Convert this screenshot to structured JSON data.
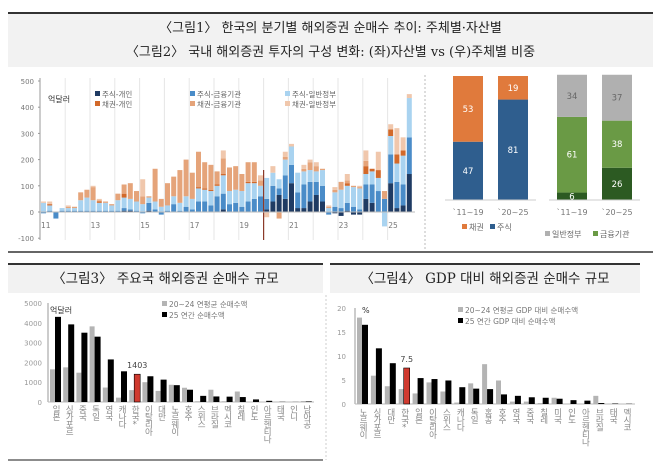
{
  "header": {
    "title1": "〈그림1〉 한국의 분기별 해외증권 순매수 추이: 주체별·자산별",
    "title2": "〈그림2〉 국내 해외증권 투자의 구성 변화: (좌)자산별 vs (우)주체별 비중"
  },
  "chart_data": [
    {
      "type": "bar",
      "stacked": true,
      "unit": "억달러",
      "ylim": [
        -100,
        500
      ],
      "yticks": [
        -100,
        0,
        100,
        200,
        300,
        400,
        500
      ],
      "x_tick_labels": [
        "11",
        "13",
        "15",
        "17",
        "19",
        "21",
        "23",
        "25"
      ],
      "series_names": [
        "주식-개인",
        "주식-금융기관",
        "주식-일반정부",
        "채권-개인",
        "채권-금융기관",
        "채권-일반정부"
      ],
      "colors": [
        "#1f3b63",
        "#4a8cc8",
        "#a9d3f0",
        "#d2692a",
        "#e5a47a",
        "#f0c7ac"
      ],
      "quarters_from": "2011Q1",
      "rows": [
        [
          0,
          -5,
          35,
          0,
          0,
          5
        ],
        [
          0,
          5,
          20,
          5,
          0,
          10
        ],
        [
          0,
          -25,
          0,
          0,
          0,
          0
        ],
        [
          0,
          5,
          10,
          0,
          0,
          0
        ],
        [
          0,
          5,
          10,
          0,
          5,
          5
        ],
        [
          0,
          5,
          10,
          0,
          5,
          0
        ],
        [
          0,
          5,
          40,
          0,
          30,
          0
        ],
        [
          0,
          5,
          50,
          0,
          30,
          0
        ],
        [
          0,
          5,
          40,
          0,
          50,
          5
        ],
        [
          0,
          5,
          30,
          5,
          5,
          5
        ],
        [
          0,
          5,
          30,
          0,
          5,
          0
        ],
        [
          0,
          5,
          20,
          0,
          5,
          0
        ],
        [
          0,
          5,
          40,
          0,
          25,
          0
        ],
        [
          5,
          10,
          40,
          15,
          35,
          0
        ],
        [
          5,
          5,
          40,
          0,
          60,
          0
        ],
        [
          0,
          5,
          35,
          0,
          40,
          0
        ],
        [
          0,
          -5,
          30,
          0,
          30,
          65
        ],
        [
          5,
          30,
          20,
          0,
          5,
          0
        ],
        [
          0,
          10,
          30,
          0,
          125,
          0
        ],
        [
          0,
          -10,
          20,
          0,
          30,
          0
        ],
        [
          0,
          5,
          20,
          0,
          85,
          0
        ],
        [
          0,
          30,
          30,
          0,
          75,
          0
        ],
        [
          0,
          5,
          30,
          0,
          125,
          0
        ],
        [
          0,
          20,
          40,
          0,
          140,
          0
        ],
        [
          0,
          10,
          40,
          0,
          100,
          0
        ],
        [
          0,
          40,
          50,
          5,
          135,
          0
        ],
        [
          0,
          40,
          45,
          5,
          100,
          0
        ],
        [
          0,
          25,
          55,
          5,
          95,
          0
        ],
        [
          0,
          60,
          40,
          5,
          50,
          0
        ],
        [
          10,
          60,
          70,
          5,
          60,
          30
        ],
        [
          0,
          30,
          50,
          0,
          90,
          0
        ],
        [
          0,
          35,
          50,
          0,
          90,
          0
        ],
        [
          0,
          20,
          60,
          0,
          65,
          0
        ],
        [
          0,
          40,
          70,
          5,
          75,
          0
        ],
        [
          0,
          50,
          60,
          5,
          75,
          0
        ],
        [
          0,
          60,
          40,
          0,
          20,
          20
        ],
        [
          10,
          40,
          80,
          0,
          0,
          -20
        ],
        [
          40,
          60,
          50,
          0,
          0,
          25
        ],
        [
          65,
          25,
          35,
          0,
          -25,
          0
        ],
        [
          50,
          90,
          60,
          0,
          10,
          20
        ],
        [
          110,
          70,
          70,
          0,
          0,
          10
        ],
        [
          15,
          60,
          75,
          0,
          0,
          0
        ],
        [
          15,
          90,
          50,
          0,
          10,
          15
        ],
        [
          40,
          75,
          45,
          0,
          30,
          10
        ],
        [
          65,
          50,
          40,
          0,
          20,
          15
        ],
        [
          40,
          60,
          60,
          0,
          5,
          0
        ],
        [
          0,
          -10,
          15,
          0,
          5,
          5
        ],
        [
          -5,
          20,
          55,
          0,
          10,
          10
        ],
        [
          -15,
          15,
          70,
          0,
          30,
          0
        ],
        [
          5,
          30,
          65,
          10,
          10,
          25
        ],
        [
          -10,
          20,
          75,
          0,
          5,
          0
        ],
        [
          -10,
          10,
          80,
          0,
          5,
          5
        ],
        [
          50,
          55,
          40,
          30,
          20,
          40
        ],
        [
          35,
          70,
          50,
          10,
          0,
          0
        ],
        [
          0,
          80,
          50,
          30,
          0,
          70
        ],
        [
          0,
          50,
          -55,
          0,
          30,
          0
        ],
        [
          110,
          110,
          70,
          25,
          0,
          20
        ],
        [
          15,
          100,
          70,
          35,
          0,
          100
        ],
        [
          25,
          80,
          110,
          20,
          0,
          50
        ],
        [
          145,
          140,
          150,
          0,
          0,
          15
        ]
      ]
    },
    {
      "type": "bar",
      "stacked": true,
      "percent": true,
      "categories": [
        "`11~19",
        "`20~25"
      ],
      "series": [
        {
          "name": "주식",
          "values": [
            47,
            81
          ],
          "color": "#2f5e8e"
        },
        {
          "name": "채권",
          "values": [
            53,
            19
          ],
          "color": "#e07a3c"
        }
      ]
    },
    {
      "type": "bar",
      "stacked": true,
      "percent": true,
      "categories": [
        "`11~19",
        "`20~25"
      ],
      "series": [
        {
          "name": "",
          "values": [
            6,
            26
          ],
          "color": "#2c5a22"
        },
        {
          "name": "금융기관",
          "values": [
            61,
            38
          ],
          "color": "#6a9a45"
        },
        {
          "name": "일반정부",
          "values": [
            34,
            37
          ],
          "color": "#b0b0b0"
        }
      ]
    },
    {
      "type": "bar",
      "title": "〈그림3〉 주요국 해외증권 순매수 규모",
      "unit": "억달러",
      "ylim": [
        0,
        5000
      ],
      "yticks": [
        0,
        1000,
        2000,
        3000,
        4000,
        5000
      ],
      "categories": [
        "일본",
        "싱가포르",
        "중국",
        "독일",
        "영국",
        "캐나다",
        "한국*",
        "이탈리아",
        "대만",
        "노르웨이",
        "호주",
        "스위스",
        "브라질",
        "멕시코",
        "칠레",
        "인도",
        "아르헨티나",
        "태국",
        "인니",
        "남아공"
      ],
      "series": [
        {
          "name": "20~24 연평균 순매수액",
          "values": [
            1650,
            1750,
            1480,
            3820,
            730,
            220,
            600,
            1000,
            560,
            870,
            720,
            40,
            620,
            40,
            530,
            0,
            0,
            20,
            10,
            50
          ],
          "color": "#b4b4b4"
        },
        {
          "name": "25 연간 순매수액",
          "values": [
            4300,
            3920,
            3500,
            3300,
            2150,
            1550,
            1403,
            1300,
            1130,
            850,
            620,
            310,
            280,
            270,
            250,
            130,
            60,
            10,
            5,
            30
          ],
          "color": "#000000"
        }
      ],
      "highlight_index": 6,
      "highlight_color": "#d03a2f",
      "annotation": "1403"
    },
    {
      "type": "bar",
      "title": "〈그림4〉 GDP 대비 해외증권 순매수 규모",
      "unit": "%",
      "ylim": [
        0,
        20
      ],
      "yticks": [
        0,
        5,
        10,
        15,
        20
      ],
      "categories": [
        "노르웨이",
        "싱가포르",
        "대만",
        "한국*",
        "일본",
        "이탈리아",
        "스위스",
        "캐나다",
        "독일",
        "홍콩",
        "호주",
        "영국",
        "중국",
        "칠레",
        "미국",
        "인도",
        "아르헨티나",
        "브라질",
        "태국",
        "멕시코"
      ],
      "series": [
        {
          "name": "20~24 연평균 GDP 대비 순매수액",
          "values": [
            18,
            5.9,
            3.7,
            3.1,
            2.2,
            4.5,
            2.6,
            0.3,
            4.3,
            8.3,
            4.9,
            0.5,
            0.5,
            0.2,
            1.3,
            0.1,
            0.1,
            1.7,
            0.1,
            0
          ],
          "color": "#b4b4b4"
        },
        {
          "name": "25 연간 GDP 대비 순매수액",
          "values": [
            16.5,
            11.6,
            8.5,
            7.5,
            5.4,
            5.2,
            4.9,
            3.5,
            3.2,
            3.1,
            2.0,
            1.7,
            1.4,
            1.3,
            1.1,
            0.8,
            0.7,
            0.2,
            0.1,
            0.05
          ],
          "color": "#000000"
        }
      ],
      "highlight_index": 3,
      "highlight_color": "#d03a2f",
      "annotation": "7.5"
    }
  ]
}
